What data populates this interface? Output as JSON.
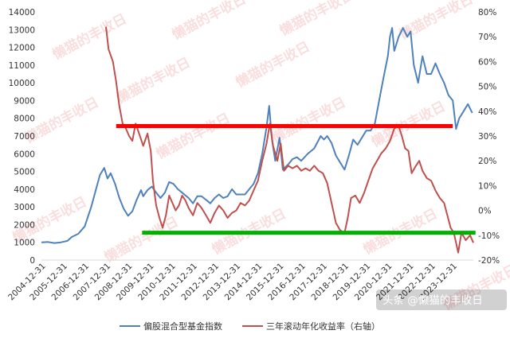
{
  "chart_data": {
    "type": "line",
    "x_axis": {
      "categories": [
        "2004-12-31",
        "2005-12-31",
        "2006-12-31",
        "2007-12-31",
        "2008-12-31",
        "2009-12-31",
        "2010-12-31",
        "2011-12-31",
        "2012-12-31",
        "2013-12-31",
        "2014-12-31",
        "2015-12-31",
        "2016-12-31",
        "2017-12-31",
        "2018-12-31",
        "2019-12-31",
        "2020-12-31",
        "2021-12-31",
        "2022-12-31",
        "2023-12-31"
      ],
      "range_years": [
        2004.9,
        2024.85
      ]
    },
    "y_left": {
      "ticks": [
        0,
        1000,
        2000,
        3000,
        4000,
        5000,
        6000,
        7000,
        8000,
        9000,
        10000,
        11000,
        12000,
        13000,
        14000
      ],
      "range": [
        0,
        14000
      ]
    },
    "y_right": {
      "ticks": [
        -20,
        -10,
        0,
        10,
        20,
        30,
        40,
        50,
        60,
        70,
        80
      ],
      "tick_labels": [
        "-20%",
        "-10%",
        "0%",
        "10%",
        "20%",
        "30%",
        "40%",
        "50%",
        "60%",
        "70%",
        "80%"
      ],
      "range": [
        -20,
        80
      ]
    },
    "grid": false,
    "legend_position": "bottom",
    "series": [
      {
        "name": "偏股混合型基金指数",
        "axis": "left",
        "color": "#4f81bd",
        "points": [
          [
            2004.9,
            1000
          ],
          [
            2005.2,
            1020
          ],
          [
            2005.5,
            960
          ],
          [
            2005.8,
            1000
          ],
          [
            2006.1,
            1080
          ],
          [
            2006.3,
            1300
          ],
          [
            2006.6,
            1480
          ],
          [
            2006.9,
            1900
          ],
          [
            2007.2,
            3000
          ],
          [
            2007.4,
            3900
          ],
          [
            2007.6,
            4800
          ],
          [
            2007.8,
            5200
          ],
          [
            2007.95,
            4600
          ],
          [
            2008.1,
            4900
          ],
          [
            2008.3,
            4300
          ],
          [
            2008.5,
            3500
          ],
          [
            2008.7,
            2900
          ],
          [
            2008.9,
            2500
          ],
          [
            2009.1,
            2750
          ],
          [
            2009.3,
            3400
          ],
          [
            2009.5,
            3950
          ],
          [
            2009.6,
            3600
          ],
          [
            2009.8,
            3950
          ],
          [
            2010.0,
            4150
          ],
          [
            2010.2,
            3800
          ],
          [
            2010.4,
            3500
          ],
          [
            2010.6,
            3800
          ],
          [
            2010.8,
            4400
          ],
          [
            2011.0,
            4300
          ],
          [
            2011.2,
            4000
          ],
          [
            2011.4,
            3800
          ],
          [
            2011.7,
            3500
          ],
          [
            2011.9,
            3200
          ],
          [
            2012.1,
            3600
          ],
          [
            2012.3,
            3600
          ],
          [
            2012.5,
            3400
          ],
          [
            2012.7,
            3200
          ],
          [
            2012.9,
            3500
          ],
          [
            2013.1,
            3700
          ],
          [
            2013.3,
            3500
          ],
          [
            2013.5,
            3600
          ],
          [
            2013.7,
            4000
          ],
          [
            2013.9,
            3700
          ],
          [
            2014.1,
            3700
          ],
          [
            2014.3,
            3700
          ],
          [
            2014.5,
            4000
          ],
          [
            2014.7,
            4300
          ],
          [
            2014.9,
            4900
          ],
          [
            2015.1,
            6000
          ],
          [
            2015.3,
            7500
          ],
          [
            2015.42,
            8700
          ],
          [
            2015.55,
            6800
          ],
          [
            2015.7,
            5600
          ],
          [
            2015.9,
            6900
          ],
          [
            2016.05,
            5100
          ],
          [
            2016.3,
            5400
          ],
          [
            2016.5,
            5700
          ],
          [
            2016.7,
            5800
          ],
          [
            2016.9,
            5600
          ],
          [
            2017.2,
            6000
          ],
          [
            2017.5,
            6300
          ],
          [
            2017.8,
            7000
          ],
          [
            2017.95,
            6800
          ],
          [
            2018.1,
            7000
          ],
          [
            2018.3,
            6600
          ],
          [
            2018.5,
            5900
          ],
          [
            2018.7,
            5500
          ],
          [
            2018.9,
            5100
          ],
          [
            2019.1,
            5900
          ],
          [
            2019.3,
            6800
          ],
          [
            2019.5,
            6500
          ],
          [
            2019.7,
            6900
          ],
          [
            2019.9,
            7300
          ],
          [
            2020.1,
            7300
          ],
          [
            2020.3,
            7700
          ],
          [
            2020.5,
            9000
          ],
          [
            2020.7,
            10300
          ],
          [
            2020.9,
            11500
          ],
          [
            2021.0,
            12600
          ],
          [
            2021.1,
            13100
          ],
          [
            2021.2,
            11800
          ],
          [
            2021.4,
            12600
          ],
          [
            2021.6,
            13100
          ],
          [
            2021.8,
            12600
          ],
          [
            2021.95,
            12900
          ],
          [
            2022.1,
            11000
          ],
          [
            2022.3,
            10000
          ],
          [
            2022.5,
            11500
          ],
          [
            2022.7,
            10500
          ],
          [
            2022.9,
            10500
          ],
          [
            2023.1,
            11100
          ],
          [
            2023.3,
            10500
          ],
          [
            2023.5,
            10000
          ],
          [
            2023.7,
            9300
          ],
          [
            2023.9,
            9000
          ],
          [
            2024.05,
            7400
          ],
          [
            2024.2,
            8000
          ],
          [
            2024.4,
            8400
          ],
          [
            2024.6,
            8800
          ],
          [
            2024.8,
            8300
          ]
        ]
      },
      {
        "name": "三年滚动年化收益率（右轴）",
        "axis": "right",
        "color": "#c0504d",
        "points": [
          [
            2007.88,
            74
          ],
          [
            2008.0,
            65
          ],
          [
            2008.2,
            60
          ],
          [
            2008.35,
            52
          ],
          [
            2008.5,
            42
          ],
          [
            2008.65,
            35
          ],
          [
            2008.8,
            33
          ],
          [
            2008.95,
            30
          ],
          [
            2009.1,
            28
          ],
          [
            2009.25,
            35
          ],
          [
            2009.45,
            30
          ],
          [
            2009.6,
            26
          ],
          [
            2009.8,
            31
          ],
          [
            2009.95,
            24
          ],
          [
            2010.05,
            12
          ],
          [
            2010.2,
            2
          ],
          [
            2010.35,
            -3
          ],
          [
            2010.5,
            -7
          ],
          [
            2010.65,
            -2
          ],
          [
            2010.8,
            6
          ],
          [
            2010.95,
            3
          ],
          [
            2011.1,
            0
          ],
          [
            2011.25,
            2
          ],
          [
            2011.4,
            6
          ],
          [
            2011.55,
            4
          ],
          [
            2011.7,
            1
          ],
          [
            2011.9,
            -2
          ],
          [
            2012.1,
            3
          ],
          [
            2012.3,
            1
          ],
          [
            2012.5,
            -2
          ],
          [
            2012.7,
            -5
          ],
          [
            2012.9,
            -1
          ],
          [
            2013.1,
            2
          ],
          [
            2013.3,
            0
          ],
          [
            2013.5,
            -3
          ],
          [
            2013.7,
            -1
          ],
          [
            2013.9,
            0
          ],
          [
            2014.1,
            3
          ],
          [
            2014.3,
            2
          ],
          [
            2014.5,
            4
          ],
          [
            2014.7,
            8
          ],
          [
            2014.9,
            12
          ],
          [
            2015.1,
            20
          ],
          [
            2015.3,
            27
          ],
          [
            2015.45,
            35
          ],
          [
            2015.6,
            26
          ],
          [
            2015.8,
            20
          ],
          [
            2015.95,
            27
          ],
          [
            2016.1,
            16
          ],
          [
            2016.3,
            18
          ],
          [
            2016.5,
            17
          ],
          [
            2016.7,
            18
          ],
          [
            2016.9,
            16
          ],
          [
            2017.1,
            17
          ],
          [
            2017.3,
            16
          ],
          [
            2017.5,
            18
          ],
          [
            2017.7,
            16
          ],
          [
            2017.9,
            15
          ],
          [
            2018.1,
            11
          ],
          [
            2018.3,
            3
          ],
          [
            2018.5,
            -5
          ],
          [
            2018.7,
            -8
          ],
          [
            2018.9,
            -9
          ],
          [
            2019.05,
            -3
          ],
          [
            2019.2,
            5
          ],
          [
            2019.4,
            6
          ],
          [
            2019.6,
            3
          ],
          [
            2019.8,
            7
          ],
          [
            2020.0,
            12
          ],
          [
            2020.2,
            17
          ],
          [
            2020.4,
            20
          ],
          [
            2020.6,
            23
          ],
          [
            2020.8,
            25
          ],
          [
            2021.0,
            28
          ],
          [
            2021.2,
            33
          ],
          [
            2021.4,
            34
          ],
          [
            2021.55,
            30
          ],
          [
            2021.7,
            25
          ],
          [
            2021.85,
            24
          ],
          [
            2022.0,
            15
          ],
          [
            2022.2,
            18
          ],
          [
            2022.35,
            20
          ],
          [
            2022.5,
            16
          ],
          [
            2022.7,
            13
          ],
          [
            2022.9,
            12
          ],
          [
            2023.1,
            8
          ],
          [
            2023.3,
            5
          ],
          [
            2023.5,
            3
          ],
          [
            2023.65,
            -2
          ],
          [
            2023.8,
            -7
          ],
          [
            2023.95,
            -9
          ],
          [
            2024.05,
            -13
          ],
          [
            2024.15,
            -17
          ],
          [
            2024.3,
            -9
          ],
          [
            2024.5,
            -12
          ],
          [
            2024.7,
            -10
          ],
          [
            2024.85,
            -13
          ]
        ]
      }
    ],
    "reference_lines": [
      {
        "axis": "right",
        "y": 34,
        "x_range": [
          2008.35,
          2023.9
        ],
        "color": "#ff0000"
      },
      {
        "axis": "right",
        "y": -9,
        "x_range": [
          2009.55,
          2024.95
        ],
        "color": "#00b000"
      }
    ],
    "watermark": "懒猫的丰收日",
    "credit": "头条 @懒猫的丰收日"
  }
}
